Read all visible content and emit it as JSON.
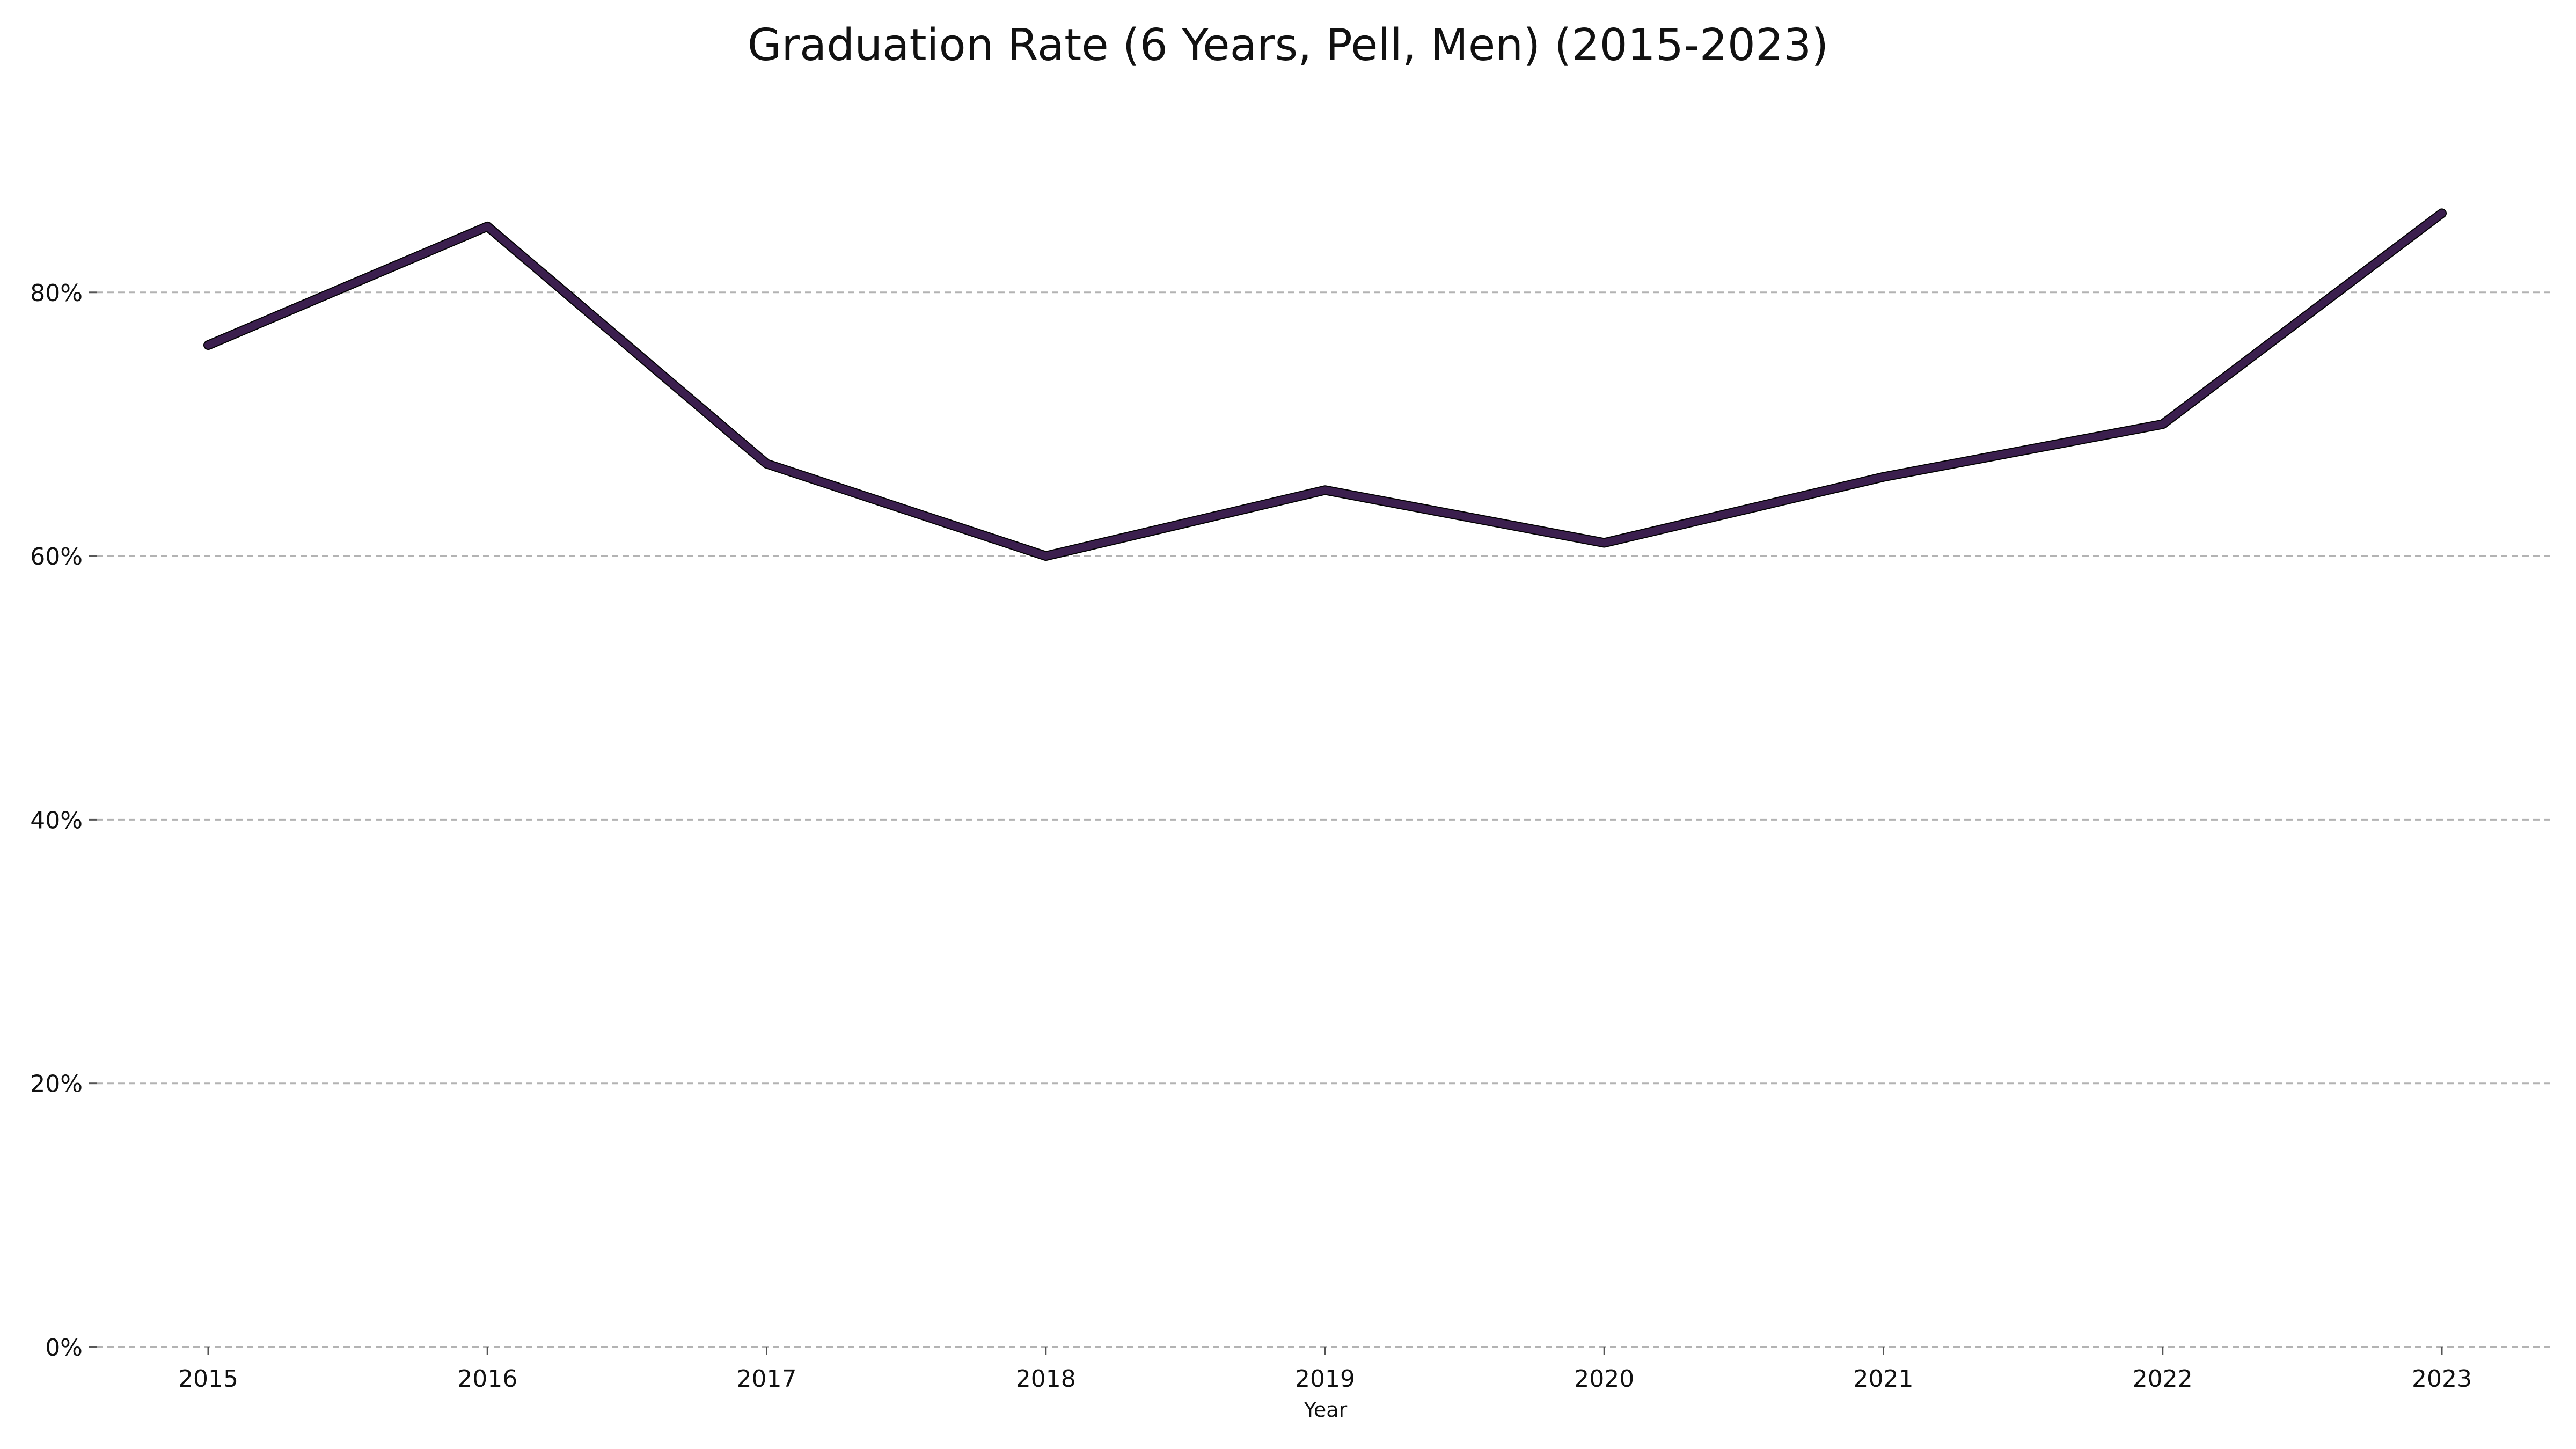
{
  "chart_data": {
    "type": "line",
    "title": "Graduation Rate (6 Years, Pell, Men) (2015-2023)",
    "xlabel": "Year",
    "ylabel": "",
    "categories": [
      "2015",
      "2016",
      "2017",
      "2018",
      "2019",
      "2020",
      "2021",
      "2022",
      "2023"
    ],
    "series": [
      {
        "values": [
          0.76,
          0.85,
          0.67,
          0.6,
          0.65,
          0.61,
          0.66,
          0.7,
          0.86
        ]
      }
    ],
    "ylim": [
      0,
      0.92
    ],
    "yticks": [
      0,
      0.2,
      0.4,
      0.6,
      0.8
    ],
    "ytick_labels": [
      "0%",
      "20%",
      "40%",
      "60%",
      "80%"
    ],
    "grid": "horizontal dashed",
    "legend": "none",
    "colors": {
      "line": "#3b1f4e",
      "grid": "#b3b3b3"
    }
  }
}
